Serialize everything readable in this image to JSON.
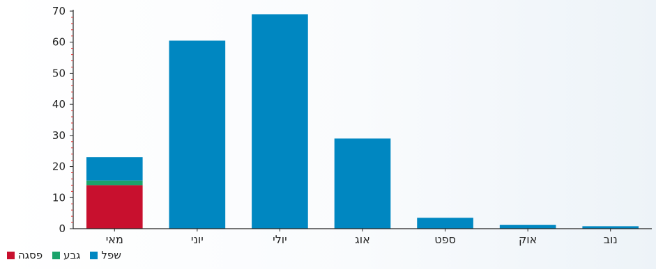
{
  "chart_data": {
    "type": "bar",
    "stacked": true,
    "categories": [
      "מאי",
      "יוני",
      "יולי",
      "אוג",
      "ספט",
      "אוק",
      "נוב"
    ],
    "series": [
      {
        "name": "פסגה",
        "color": "#c8102e",
        "values": [
          14,
          0,
          0,
          0,
          0,
          0,
          0
        ]
      },
      {
        "name": "גבע",
        "color": "#1aa36b",
        "values": [
          1.5,
          0,
          0,
          0,
          0,
          0,
          0
        ]
      },
      {
        "name": "שפל",
        "color": "#0087c1",
        "values": [
          7.5,
          60.5,
          69,
          29,
          3.5,
          1.2,
          0.8
        ]
      }
    ],
    "ylim": [
      0,
      70
    ],
    "yticks": [
      0,
      10,
      20,
      30,
      40,
      50,
      60,
      70
    ],
    "grid": false,
    "legend_position": "bottom-left",
    "title": "",
    "xlabel": "",
    "ylabel": ""
  }
}
